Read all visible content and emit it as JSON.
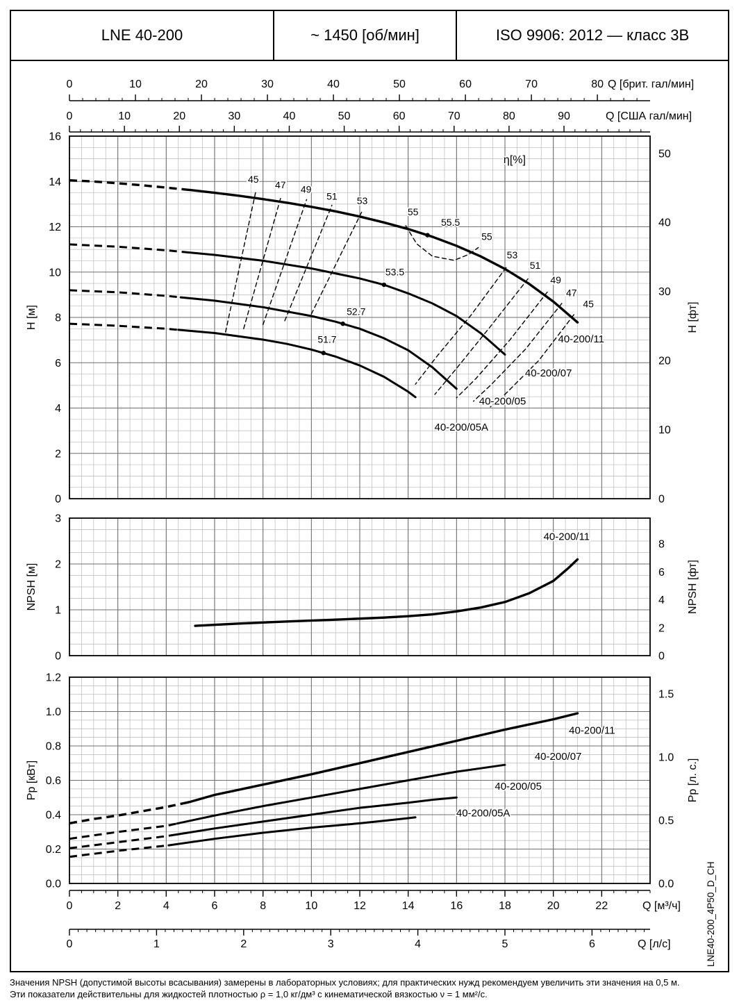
{
  "header": {
    "model": "LNE 40-200",
    "speed": "~ 1450 [об/мин]",
    "standard": "ISO 9906: 2012 — класс 3В"
  },
  "side_code": "LNE40-200_4P50_D_CH",
  "footnotes": [
    "Значения NPSH (допустимой высоты всасывания) замерены в лабораторных условиях; для практических нужд рекомендуем увеличить эти значения на 0,5 м.",
    "Эти показатели действительны для жидкостей плотностью ρ = 1,0 кг/дм³ с кинематической вязкостью ν = 1 мм²/с."
  ],
  "flow_axes": [
    {
      "id": "uk-gpm",
      "label": "Q [брит. гал/мин]",
      "units_per_m3h": 3.6662,
      "minor_step": 2,
      "labels": [
        "0",
        "10",
        "20",
        "30",
        "40",
        "50",
        "60",
        "70",
        "80"
      ]
    },
    {
      "id": "us-gpm",
      "label": "Q [США гал/мин]",
      "units_per_m3h": 4.4029,
      "minor_step": 2,
      "labels": [
        "0",
        "10",
        "20",
        "30",
        "40",
        "50",
        "60",
        "70",
        "80",
        "90"
      ]
    },
    {
      "id": "m3h",
      "label": "Q [м³/ч]",
      "units_per_m3h": 1,
      "minor_step": 0.5,
      "labels": [
        "0",
        "2",
        "4",
        "6",
        "8",
        "10",
        "12",
        "14",
        "16",
        "18",
        "20",
        "22"
      ]
    },
    {
      "id": "ls",
      "label": "Q [л/с]",
      "units_per_m3h": 0.27778,
      "minor_step": 0.1,
      "labels": [
        "0",
        "1",
        "2",
        "3",
        "4",
        "5",
        "6"
      ]
    }
  ],
  "chart_data": [
    {
      "type": "line",
      "id": "hq",
      "xlim": [
        0,
        24
      ],
      "ylim": [
        0,
        16
      ],
      "ylabel_left": "H [м]",
      "ylabel_right": "H [фт]",
      "yticks_left": [
        "0",
        "2",
        "4",
        "6",
        "8",
        "10",
        "12",
        "14",
        "16"
      ],
      "yticks_right": [
        "0",
        "10",
        "20",
        "30",
        "40",
        "50"
      ],
      "right_scale": 3.2808,
      "x_grid": {
        "minor": 0.5,
        "major": 2
      },
      "y_grid": {
        "minor": 0.5,
        "major": 2
      },
      "series": [
        {
          "name": "40-200/11",
          "style": "pump",
          "w": 3.4,
          "dash_until": 4.9,
          "points": [
            [
              0,
              14.05
            ],
            [
              1,
              14.0
            ],
            [
              2,
              13.92
            ],
            [
              3,
              13.83
            ],
            [
              4,
              13.73
            ],
            [
              5,
              13.62
            ],
            [
              6,
              13.5
            ],
            [
              7,
              13.37
            ],
            [
              8,
              13.22
            ],
            [
              9,
              13.06
            ],
            [
              10,
              12.88
            ],
            [
              11,
              12.68
            ],
            [
              12,
              12.45
            ],
            [
              13,
              12.19
            ],
            [
              14,
              11.9
            ],
            [
              15,
              11.56
            ],
            [
              16,
              11.16
            ],
            [
              17,
              10.69
            ],
            [
              18,
              10.14
            ],
            [
              19,
              9.48
            ],
            [
              20,
              8.7
            ],
            [
              21,
              7.78
            ]
          ]
        },
        {
          "name": "40-200/07",
          "style": "pump",
          "dash_until": 4.7,
          "points": [
            [
              0,
              11.22
            ],
            [
              2,
              11.12
            ],
            [
              4,
              10.96
            ],
            [
              6,
              10.76
            ],
            [
              8,
              10.5
            ],
            [
              10,
              10.16
            ],
            [
              12,
              9.72
            ],
            [
              13,
              9.44
            ],
            [
              14,
              9.06
            ],
            [
              15,
              8.62
            ],
            [
              16,
              8.06
            ],
            [
              17,
              7.3
            ],
            [
              18,
              6.36
            ]
          ]
        },
        {
          "name": "40-200/05",
          "style": "pump",
          "dash_until": 4.6,
          "points": [
            [
              0,
              9.2
            ],
            [
              2,
              9.11
            ],
            [
              4,
              8.95
            ],
            [
              6,
              8.74
            ],
            [
              8,
              8.45
            ],
            [
              10,
              8.06
            ],
            [
              11,
              7.81
            ],
            [
              12,
              7.5
            ],
            [
              13,
              7.08
            ],
            [
              14,
              6.55
            ],
            [
              15,
              5.8
            ],
            [
              16,
              4.85
            ]
          ]
        },
        {
          "name": "40-200/05A",
          "style": "pump",
          "dash_until": 4.5,
          "points": [
            [
              0,
              7.72
            ],
            [
              2,
              7.63
            ],
            [
              4,
              7.5
            ],
            [
              6,
              7.31
            ],
            [
              8,
              7.02
            ],
            [
              9,
              6.83
            ],
            [
              10,
              6.58
            ],
            [
              11,
              6.27
            ],
            [
              12,
              5.88
            ],
            [
              13,
              5.38
            ],
            [
              14,
              4.72
            ],
            [
              14.3,
              4.48
            ]
          ]
        },
        {
          "name": "eff-45-left",
          "style": "eff",
          "points": [
            [
              6.45,
              7.35
            ],
            [
              7.7,
              13.55
            ]
          ]
        },
        {
          "name": "eff-47-left",
          "style": "eff",
          "points": [
            [
              7.2,
              7.5
            ],
            [
              8.75,
              13.35
            ]
          ]
        },
        {
          "name": "eff-49-left",
          "style": "eff",
          "points": [
            [
              8.0,
              7.68
            ],
            [
              9.8,
              13.2
            ]
          ]
        },
        {
          "name": "eff-51-left",
          "style": "eff",
          "points": [
            [
              8.9,
              7.85
            ],
            [
              10.85,
              12.95
            ]
          ]
        },
        {
          "name": "eff-53-left",
          "style": "eff",
          "points": [
            [
              10.0,
              8.15
            ],
            [
              12.1,
              12.7
            ]
          ]
        },
        {
          "name": "eff-55-loop",
          "style": "eff",
          "points": [
            [
              13.9,
              12.05
            ],
            [
              14.35,
              11.25
            ],
            [
              15.0,
              10.7
            ],
            [
              15.9,
              10.52
            ],
            [
              16.5,
              10.78
            ],
            [
              16.9,
              11.08
            ]
          ]
        },
        {
          "name": "eff-53-right",
          "style": "eff",
          "points": [
            [
              18.05,
              10.2
            ],
            [
              16.6,
              8.1
            ],
            [
              15.2,
              6.3
            ],
            [
              14.3,
              5.05
            ]
          ]
        },
        {
          "name": "eff-51-right",
          "style": "eff",
          "points": [
            [
              18.95,
              9.7
            ],
            [
              17.4,
              7.6
            ],
            [
              16.0,
              5.75
            ],
            [
              15.1,
              4.6
            ]
          ]
        },
        {
          "name": "eff-49-right",
          "style": "eff",
          "points": [
            [
              19.75,
              9.12
            ],
            [
              18.2,
              7.0
            ],
            [
              16.8,
              5.3
            ],
            [
              16.0,
              4.45
            ]
          ]
        },
        {
          "name": "eff-47-right",
          "style": "eff",
          "points": [
            [
              20.35,
              8.62
            ],
            [
              18.85,
              6.6
            ],
            [
              17.4,
              5.0
            ],
            [
              16.7,
              4.3
            ]
          ]
        },
        {
          "name": "eff-45-right",
          "style": "eff",
          "points": [
            [
              20.85,
              8.12
            ],
            [
              19.4,
              6.1
            ],
            [
              18.0,
              4.6
            ],
            [
              17.4,
              4.05
            ]
          ]
        }
      ],
      "dots": [
        {
          "q": 14.8,
          "h": 11.63,
          "label": "55.5",
          "label_pos": [
            15.75,
            12.05
          ]
        },
        {
          "q": 13.0,
          "h": 9.44,
          "label": "53.5",
          "label_pos": [
            13.45,
            9.85
          ]
        },
        {
          "q": 11.3,
          "h": 7.72,
          "label": "52.7",
          "label_pos": [
            11.85,
            8.1
          ]
        },
        {
          "q": 10.5,
          "h": 6.43,
          "label": "51.7",
          "label_pos": [
            10.65,
            6.88
          ]
        }
      ],
      "annotations": [
        {
          "text": "η[%]",
          "pos": [
            18.4,
            14.8
          ],
          "size": 16
        },
        {
          "text": "45",
          "pos": [
            7.6,
            13.95
          ]
        },
        {
          "text": "47",
          "pos": [
            8.72,
            13.7
          ]
        },
        {
          "text": "49",
          "pos": [
            9.78,
            13.5
          ]
        },
        {
          "text": "51",
          "pos": [
            10.85,
            13.2
          ]
        },
        {
          "text": "53",
          "pos": [
            12.1,
            13.0
          ]
        },
        {
          "text": "55",
          "pos": [
            14.2,
            12.5
          ]
        },
        {
          "text": "55",
          "pos": [
            17.25,
            11.42
          ]
        },
        {
          "text": "53",
          "pos": [
            18.3,
            10.6
          ]
        },
        {
          "text": "51",
          "pos": [
            19.25,
            10.15
          ]
        },
        {
          "text": "49",
          "pos": [
            20.1,
            9.5
          ]
        },
        {
          "text": "47",
          "pos": [
            20.75,
            8.93
          ]
        },
        {
          "text": "45",
          "pos": [
            21.45,
            8.45
          ]
        },
        {
          "text": "40-200/11",
          "pos": [
            21.15,
            6.9
          ],
          "size": 15
        },
        {
          "text": "40-200/07",
          "pos": [
            19.8,
            5.4
          ],
          "size": 15
        },
        {
          "text": "40-200/05",
          "pos": [
            17.9,
            4.15
          ],
          "size": 15
        },
        {
          "text": "40-200/05A",
          "pos": [
            16.2,
            3.0
          ],
          "size": 15
        }
      ]
    },
    {
      "type": "line",
      "id": "npsh",
      "xlim": [
        0,
        24
      ],
      "ylim": [
        0,
        3
      ],
      "ylabel_left": "NPSH [м]",
      "ylabel_right": "NPSH [фт]",
      "yticks_left": [
        "0",
        "1",
        "2",
        "3"
      ],
      "yticks_right": [
        "0",
        "2",
        "4",
        "6",
        "8"
      ],
      "right_scale": 3.2808,
      "x_grid": {
        "minor": 0.5,
        "major": 2
      },
      "y_grid": {
        "minor": 0.25,
        "major": 1
      },
      "series": [
        {
          "name": "40-200/11",
          "style": "npsh",
          "w": 3.4,
          "points": [
            [
              5.2,
              0.65
            ],
            [
              7,
              0.7
            ],
            [
              9,
              0.745
            ],
            [
              11,
              0.785
            ],
            [
              13,
              0.83
            ],
            [
              14,
              0.86
            ],
            [
              15,
              0.9
            ],
            [
              16,
              0.965
            ],
            [
              17,
              1.05
            ],
            [
              18,
              1.17
            ],
            [
              19,
              1.36
            ],
            [
              20,
              1.63
            ],
            [
              20.6,
              1.9
            ],
            [
              21,
              2.1
            ]
          ]
        }
      ],
      "dots": [],
      "annotations": [
        {
          "text": "40-200/11",
          "pos": [
            20.55,
            2.52
          ],
          "size": 15
        }
      ]
    },
    {
      "type": "line",
      "id": "power",
      "xlim": [
        0,
        24
      ],
      "ylim": [
        0,
        1.2
      ],
      "ylabel_left": "Рр [кВт]",
      "ylabel_right": "Рр [л. с.]",
      "yticks_left": [
        "0.0",
        "0.2",
        "0.4",
        "0.6",
        "0.8",
        "1.0",
        "1.2"
      ],
      "yticks_right": [
        "0.0",
        "0.5",
        "1.0",
        "1.5"
      ],
      "right_scale": 1.3596,
      "x_grid": {
        "minor": 0.5,
        "major": 2
      },
      "y_grid": {
        "minor": 0.05,
        "major": 0.2
      },
      "series": [
        {
          "name": "40-200/11",
          "style": "pump",
          "w": 3.4,
          "dash_until": 4.9,
          "points": [
            [
              0,
              0.35
            ],
            [
              1,
              0.375
            ],
            [
              2,
              0.395
            ],
            [
              3,
              0.42
            ],
            [
              4,
              0.445
            ],
            [
              5,
              0.475
            ],
            [
              6,
              0.515
            ],
            [
              8,
              0.575
            ],
            [
              10,
              0.635
            ],
            [
              12,
              0.7
            ],
            [
              14,
              0.765
            ],
            [
              16,
              0.83
            ],
            [
              18,
              0.895
            ],
            [
              19,
              0.925
            ],
            [
              20,
              0.955
            ],
            [
              21,
              0.99
            ]
          ]
        },
        {
          "name": "40-200/07",
          "style": "pump",
          "dash_until": 4.45,
          "points": [
            [
              0,
              0.26
            ],
            [
              2,
              0.3
            ],
            [
              4,
              0.335
            ],
            [
              6,
              0.395
            ],
            [
              8,
              0.45
            ],
            [
              10,
              0.5
            ],
            [
              12,
              0.55
            ],
            [
              14,
              0.6
            ],
            [
              16,
              0.65
            ],
            [
              17,
              0.67
            ],
            [
              18,
              0.69
            ]
          ]
        },
        {
          "name": "40-200/05",
          "style": "pump",
          "dash_until": 4.25,
          "points": [
            [
              0,
              0.205
            ],
            [
              2,
              0.24
            ],
            [
              4,
              0.275
            ],
            [
              6,
              0.32
            ],
            [
              8,
              0.36
            ],
            [
              10,
              0.4
            ],
            [
              12,
              0.44
            ],
            [
              14,
              0.47
            ],
            [
              15,
              0.487
            ],
            [
              16,
              0.5
            ]
          ]
        },
        {
          "name": "40-200/05A",
          "style": "pump",
          "dash_until": 4.1,
          "points": [
            [
              0,
              0.155
            ],
            [
              2,
              0.19
            ],
            [
              4,
              0.22
            ],
            [
              6,
              0.26
            ],
            [
              8,
              0.295
            ],
            [
              10,
              0.325
            ],
            [
              12,
              0.35
            ],
            [
              13,
              0.365
            ],
            [
              14,
              0.38
            ],
            [
              14.3,
              0.385
            ]
          ]
        }
      ],
      "dots": [],
      "annotations": [
        {
          "text": "40-200/11",
          "pos": [
            21.6,
            0.87
          ],
          "size": 15
        },
        {
          "text": "40-200/07",
          "pos": [
            20.2,
            0.72
          ],
          "size": 15
        },
        {
          "text": "40-200/05",
          "pos": [
            18.55,
            0.545
          ],
          "size": 15
        },
        {
          "text": "40-200/05A",
          "pos": [
            17.1,
            0.39
          ],
          "size": 15
        }
      ]
    }
  ]
}
